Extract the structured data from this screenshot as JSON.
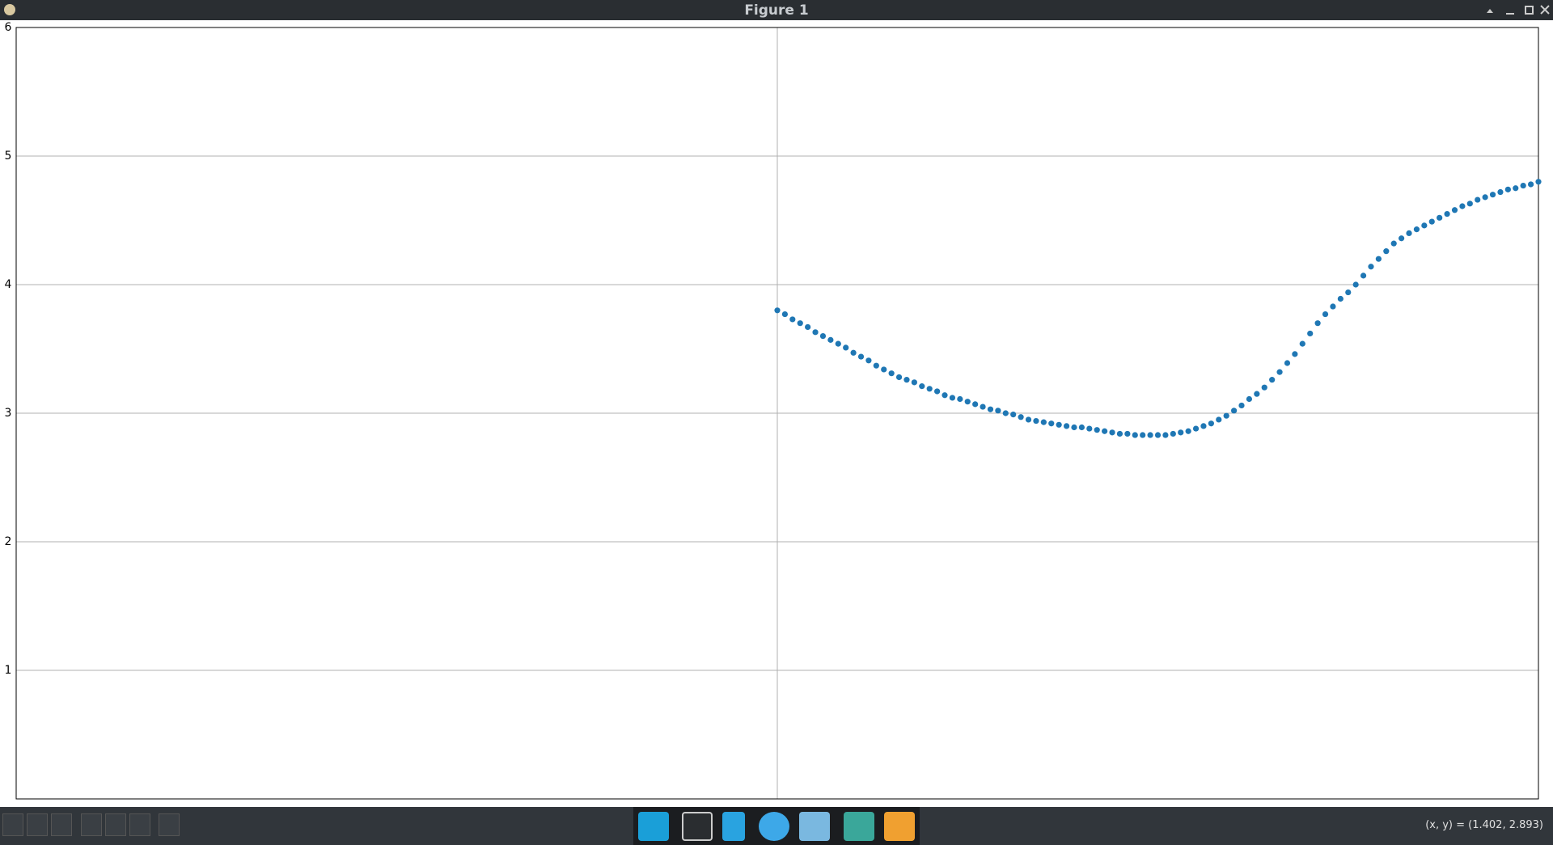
{
  "window": {
    "title": "Figure 1"
  },
  "chart_data": {
    "type": "scatter",
    "color": "#1f77b4",
    "grid": true,
    "xlim": [
      -3.5,
      3.5
    ],
    "xticks": [
      0
    ],
    "ylim": [
      0,
      6
    ],
    "yticks": [
      1,
      2,
      3,
      4,
      5,
      6
    ],
    "x": [
      0,
      0.035,
      0.07,
      0.105,
      0.14,
      0.175,
      0.21,
      0.245,
      0.28,
      0.315,
      0.35,
      0.385,
      0.42,
      0.455,
      0.49,
      0.525,
      0.56,
      0.595,
      0.63,
      0.665,
      0.7,
      0.735,
      0.77,
      0.805,
      0.84,
      0.875,
      0.91,
      0.945,
      0.98,
      1.015,
      1.05,
      1.085,
      1.12,
      1.155,
      1.19,
      1.225,
      1.26,
      1.295,
      1.33,
      1.365,
      1.4,
      1.435,
      1.47,
      1.505,
      1.54,
      1.575,
      1.61,
      1.645,
      1.68,
      1.715,
      1.75,
      1.785,
      1.82,
      1.855,
      1.89,
      1.925,
      1.96,
      1.995,
      2.03,
      2.065,
      2.1,
      2.135,
      2.17,
      2.205,
      2.24,
      2.275,
      2.31,
      2.345,
      2.38,
      2.415,
      2.45,
      2.485,
      2.52,
      2.555,
      2.59,
      2.625,
      2.66,
      2.695,
      2.73,
      2.765,
      2.8,
      2.835,
      2.87,
      2.905,
      2.94,
      2.975,
      3.01,
      3.045,
      3.08,
      3.115,
      3.15,
      3.185,
      3.22,
      3.255,
      3.29,
      3.325,
      3.36,
      3.395,
      3.43,
      3.465,
      3.5
    ],
    "values": [
      3.8,
      3.77,
      3.73,
      3.7,
      3.67,
      3.63,
      3.6,
      3.57,
      3.54,
      3.51,
      3.47,
      3.44,
      3.41,
      3.37,
      3.34,
      3.31,
      3.28,
      3.26,
      3.24,
      3.21,
      3.19,
      3.17,
      3.14,
      3.12,
      3.11,
      3.09,
      3.07,
      3.05,
      3.03,
      3.02,
      3.0,
      2.99,
      2.97,
      2.95,
      2.94,
      2.93,
      2.92,
      2.91,
      2.9,
      2.89,
      2.89,
      2.88,
      2.87,
      2.86,
      2.85,
      2.84,
      2.84,
      2.83,
      2.83,
      2.83,
      2.83,
      2.83,
      2.84,
      2.85,
      2.86,
      2.88,
      2.9,
      2.92,
      2.95,
      2.98,
      3.02,
      3.06,
      3.11,
      3.15,
      3.2,
      3.26,
      3.32,
      3.39,
      3.46,
      3.54,
      3.62,
      3.7,
      3.77,
      3.83,
      3.89,
      3.94,
      4.0,
      4.07,
      4.14,
      4.2,
      4.26,
      4.32,
      4.36,
      4.4,
      4.43,
      4.46,
      4.49,
      4.52,
      4.55,
      4.58,
      4.61,
      4.63,
      4.66,
      4.68,
      4.7,
      4.72,
      4.74,
      4.75,
      4.77,
      4.78,
      4.8
    ]
  },
  "status": {
    "coordinates": "(x, y) = (1.402, 2.893)"
  }
}
